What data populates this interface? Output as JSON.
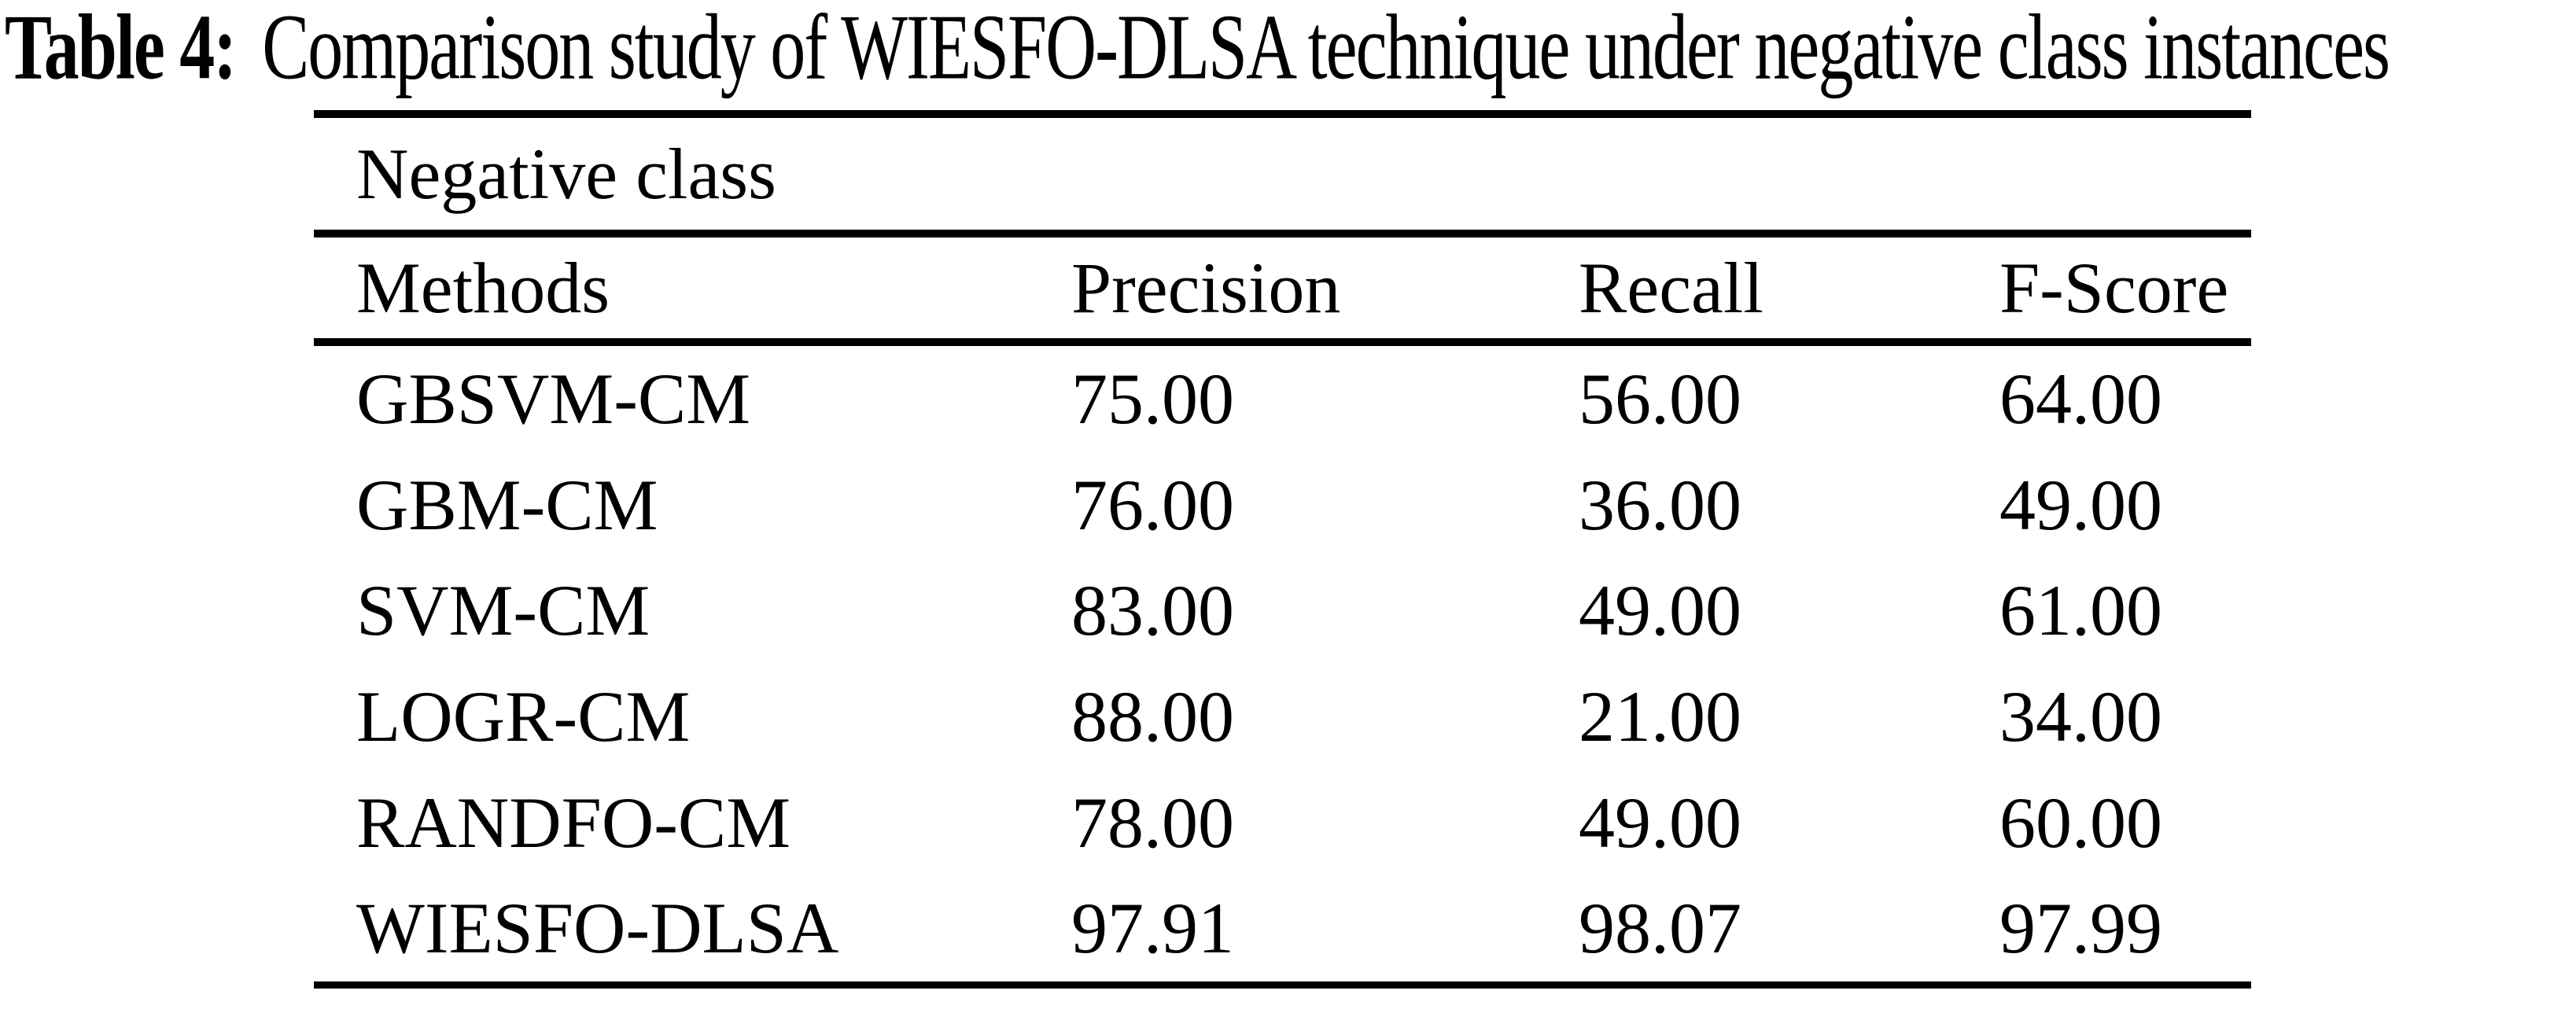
{
  "title": {
    "label": "Table 4:",
    "caption": "Comparison study of WIESFO-DLSA technique under negative class instances"
  },
  "table": {
    "group_header": "Negative class",
    "columns": [
      "Methods",
      "Precision",
      "Recall",
      "F-Score"
    ],
    "rows": [
      {
        "method": "GBSVM-CM",
        "precision": "75.00",
        "recall": "56.00",
        "f_score": "64.00"
      },
      {
        "method": "GBM-CM",
        "precision": "76.00",
        "recall": "36.00",
        "f_score": "49.00"
      },
      {
        "method": "SVM-CM",
        "precision": "83.00",
        "recall": "49.00",
        "f_score": "61.00"
      },
      {
        "method": "LOGR-CM",
        "precision": "88.00",
        "recall": "21.00",
        "f_score": "34.00"
      },
      {
        "method": "RANDFO-CM",
        "precision": "78.00",
        "recall": "49.00",
        "f_score": "60.00"
      },
      {
        "method": "WIESFO-DLSA",
        "precision": "97.91",
        "recall": "98.07",
        "f_score": "97.99"
      }
    ]
  },
  "colors": {
    "text": "#000000",
    "background": "#ffffff",
    "rule": "#000000"
  }
}
